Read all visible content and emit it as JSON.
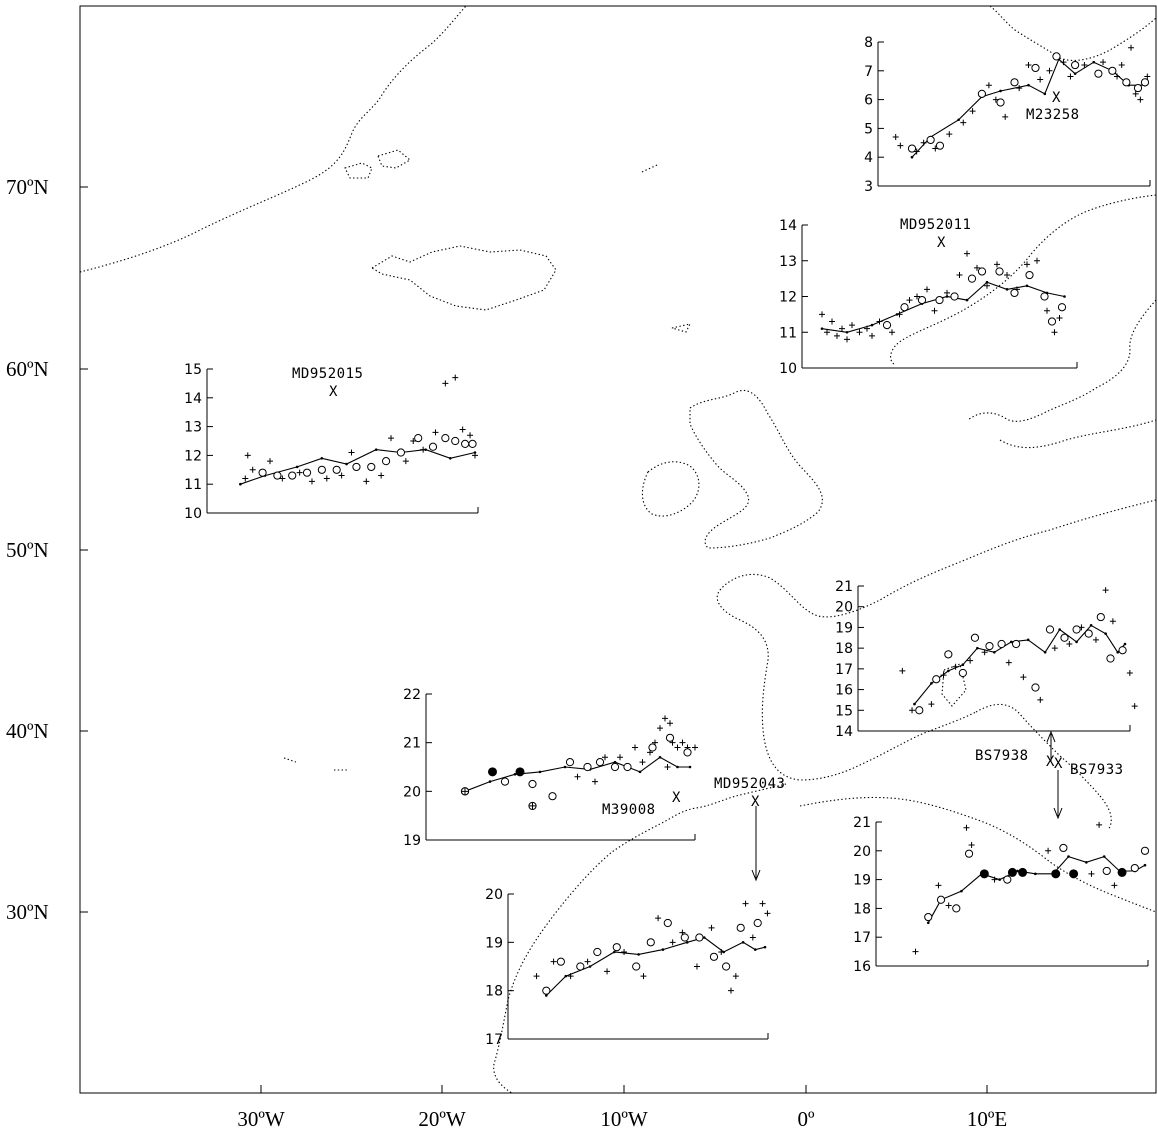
{
  "map": {
    "lat_labels": [
      "70ºN",
      "60ºN",
      "50ºN",
      "40ºN",
      "30ºN"
    ],
    "lon_labels": [
      "30ºW",
      "20ºW",
      "10ºW",
      "0º",
      "10ºE"
    ]
  },
  "chart_data": [
    {
      "type": "scatter",
      "site": "M23258",
      "ylim": [
        3,
        8
      ],
      "yticks": [
        "3",
        "4",
        "5",
        "6",
        "7",
        "8"
      ],
      "trend": [
        [
          0.0,
          4.0
        ],
        [
          0.08,
          4.7
        ],
        [
          0.2,
          5.3
        ],
        [
          0.3,
          6.1
        ],
        [
          0.38,
          6.3
        ],
        [
          0.5,
          6.5
        ],
        [
          0.57,
          6.2
        ],
        [
          0.63,
          7.4
        ],
        [
          0.7,
          6.9
        ],
        [
          0.78,
          7.3
        ],
        [
          0.86,
          7.0
        ],
        [
          0.93,
          6.5
        ],
        [
          1.0,
          6.5
        ]
      ],
      "circles": [
        [
          0.0,
          4.3
        ],
        [
          0.08,
          4.6
        ],
        [
          0.12,
          4.4
        ],
        [
          0.3,
          6.2
        ],
        [
          0.38,
          5.9
        ],
        [
          0.44,
          6.6
        ],
        [
          0.53,
          7.1
        ],
        [
          0.62,
          7.5
        ],
        [
          0.7,
          7.2
        ],
        [
          0.8,
          6.9
        ],
        [
          0.86,
          7.0
        ],
        [
          0.92,
          6.6
        ],
        [
          0.97,
          6.4
        ],
        [
          1.0,
          6.6
        ]
      ],
      "pluses": [
        [
          -0.07,
          4.7
        ],
        [
          -0.05,
          4.4
        ],
        [
          0.02,
          4.2
        ],
        [
          0.05,
          4.5
        ],
        [
          0.1,
          4.3
        ],
        [
          0.16,
          4.8
        ],
        [
          0.22,
          5.2
        ],
        [
          0.26,
          5.6
        ],
        [
          0.33,
          6.5
        ],
        [
          0.36,
          6.0
        ],
        [
          0.4,
          5.4
        ],
        [
          0.46,
          6.4
        ],
        [
          0.5,
          7.2
        ],
        [
          0.55,
          6.7
        ],
        [
          0.59,
          7.0
        ],
        [
          0.65,
          7.3
        ],
        [
          0.68,
          6.8
        ],
        [
          0.74,
          7.2
        ],
        [
          0.82,
          7.3
        ],
        [
          0.88,
          6.8
        ],
        [
          0.9,
          7.2
        ],
        [
          0.94,
          7.8
        ],
        [
          0.96,
          6.2
        ],
        [
          0.98,
          6.0
        ],
        [
          1.01,
          6.8
        ]
      ]
    },
    {
      "type": "scatter",
      "site": "MD952011",
      "ylim": [
        10,
        14
      ],
      "yticks": [
        "10",
        "11",
        "12",
        "13",
        "14"
      ],
      "trend": [
        [
          0.0,
          11.1
        ],
        [
          0.1,
          11.0
        ],
        [
          0.2,
          11.2
        ],
        [
          0.3,
          11.5
        ],
        [
          0.4,
          11.8
        ],
        [
          0.5,
          12.0
        ],
        [
          0.58,
          11.9
        ],
        [
          0.66,
          12.4
        ],
        [
          0.74,
          12.2
        ],
        [
          0.82,
          12.3
        ],
        [
          0.9,
          12.1
        ],
        [
          0.97,
          12.0
        ]
      ],
      "circles": [
        [
          0.26,
          11.2
        ],
        [
          0.33,
          11.7
        ],
        [
          0.4,
          11.9
        ],
        [
          0.47,
          11.9
        ],
        [
          0.53,
          12.0
        ],
        [
          0.6,
          12.5
        ],
        [
          0.64,
          12.7
        ],
        [
          0.71,
          12.7
        ],
        [
          0.77,
          12.1
        ],
        [
          0.83,
          12.6
        ],
        [
          0.89,
          12.0
        ],
        [
          0.92,
          11.3
        ],
        [
          0.96,
          11.7
        ]
      ],
      "pluses": [
        [
          0.0,
          11.5
        ],
        [
          0.02,
          11.0
        ],
        [
          0.04,
          11.3
        ],
        [
          0.06,
          10.9
        ],
        [
          0.08,
          11.1
        ],
        [
          0.1,
          10.8
        ],
        [
          0.12,
          11.2
        ],
        [
          0.15,
          11.0
        ],
        [
          0.18,
          11.1
        ],
        [
          0.2,
          10.9
        ],
        [
          0.23,
          11.3
        ],
        [
          0.28,
          11.0
        ],
        [
          0.31,
          11.5
        ],
        [
          0.35,
          11.9
        ],
        [
          0.38,
          12.0
        ],
        [
          0.42,
          12.2
        ],
        [
          0.45,
          11.6
        ],
        [
          0.5,
          12.1
        ],
        [
          0.55,
          12.6
        ],
        [
          0.58,
          13.2
        ],
        [
          0.62,
          12.8
        ],
        [
          0.66,
          12.3
        ],
        [
          0.7,
          12.9
        ],
        [
          0.74,
          12.6
        ],
        [
          0.78,
          12.2
        ],
        [
          0.82,
          12.9
        ],
        [
          0.86,
          13.0
        ],
        [
          0.9,
          11.6
        ],
        [
          0.93,
          11.0
        ],
        [
          0.95,
          11.4
        ]
      ]
    },
    {
      "type": "scatter",
      "site": "MD952015",
      "ylim": [
        10,
        15
      ],
      "yticks": [
        "10",
        "11",
        "12",
        "13",
        "14",
        "15"
      ],
      "trend": [
        [
          0.05,
          11.0
        ],
        [
          0.15,
          11.3
        ],
        [
          0.28,
          11.6
        ],
        [
          0.38,
          11.9
        ],
        [
          0.48,
          11.7
        ],
        [
          0.6,
          12.2
        ],
        [
          0.7,
          12.1
        ],
        [
          0.8,
          12.2
        ],
        [
          0.9,
          11.9
        ],
        [
          1.0,
          12.1
        ]
      ],
      "circles": [
        [
          0.14,
          11.4
        ],
        [
          0.2,
          11.3
        ],
        [
          0.26,
          11.3
        ],
        [
          0.32,
          11.4
        ],
        [
          0.38,
          11.5
        ],
        [
          0.44,
          11.5
        ],
        [
          0.52,
          11.6
        ],
        [
          0.58,
          11.6
        ],
        [
          0.64,
          11.8
        ],
        [
          0.7,
          12.1
        ],
        [
          0.77,
          12.6
        ],
        [
          0.83,
          12.3
        ],
        [
          0.88,
          12.6
        ],
        [
          0.92,
          12.5
        ],
        [
          0.96,
          12.4
        ],
        [
          0.99,
          12.4
        ]
      ],
      "pluses": [
        [
          0.07,
          11.2
        ],
        [
          0.08,
          12.0
        ],
        [
          0.1,
          11.5
        ],
        [
          0.17,
          11.8
        ],
        [
          0.22,
          11.2
        ],
        [
          0.29,
          11.4
        ],
        [
          0.34,
          11.1
        ],
        [
          0.4,
          11.2
        ],
        [
          0.46,
          11.3
        ],
        [
          0.5,
          12.1
        ],
        [
          0.56,
          11.1
        ],
        [
          0.62,
          11.3
        ],
        [
          0.66,
          12.6
        ],
        [
          0.72,
          11.8
        ],
        [
          0.75,
          12.5
        ],
        [
          0.79,
          12.2
        ],
        [
          0.84,
          12.8
        ],
        [
          0.88,
          14.5
        ],
        [
          0.92,
          14.7
        ],
        [
          0.95,
          12.9
        ],
        [
          0.98,
          12.7
        ],
        [
          1.0,
          12.0
        ]
      ]
    },
    {
      "type": "scatter",
      "site": "BS7938",
      "ylim": [
        14,
        21
      ],
      "yticks": [
        "14",
        "15",
        "16",
        "17",
        "18",
        "19",
        "20",
        "21"
      ],
      "trend": [
        [
          0.13,
          15.3
        ],
        [
          0.2,
          16.3
        ],
        [
          0.27,
          16.9
        ],
        [
          0.33,
          17.2
        ],
        [
          0.39,
          18.0
        ],
        [
          0.46,
          17.8
        ],
        [
          0.53,
          18.3
        ],
        [
          0.6,
          18.4
        ],
        [
          0.67,
          17.8
        ],
        [
          0.73,
          18.9
        ],
        [
          0.8,
          18.3
        ],
        [
          0.86,
          19.1
        ],
        [
          0.92,
          18.7
        ],
        [
          0.97,
          17.8
        ],
        [
          1.0,
          18.2
        ]
      ],
      "circles": [
        [
          0.15,
          15.0
        ],
        [
          0.22,
          16.5
        ],
        [
          0.27,
          17.7
        ],
        [
          0.33,
          16.8
        ],
        [
          0.38,
          18.5
        ],
        [
          0.44,
          18.1
        ],
        [
          0.49,
          18.2
        ],
        [
          0.55,
          18.2
        ],
        [
          0.63,
          16.1
        ],
        [
          0.69,
          18.9
        ],
        [
          0.75,
          18.5
        ],
        [
          0.8,
          18.9
        ],
        [
          0.85,
          18.7
        ],
        [
          0.9,
          19.5
        ],
        [
          0.94,
          17.5
        ],
        [
          0.99,
          17.9
        ]
      ],
      "pluses": [
        [
          0.08,
          16.9
        ],
        [
          0.12,
          15.0
        ],
        [
          0.2,
          15.3
        ],
        [
          0.25,
          16.7
        ],
        [
          0.3,
          17.1
        ],
        [
          0.36,
          17.4
        ],
        [
          0.42,
          17.8
        ],
        [
          0.52,
          17.3
        ],
        [
          0.58,
          16.6
        ],
        [
          0.65,
          15.5
        ],
        [
          0.71,
          18.0
        ],
        [
          0.77,
          18.2
        ],
        [
          0.82,
          19.0
        ],
        [
          0.88,
          18.4
        ],
        [
          0.92,
          20.8
        ],
        [
          0.95,
          19.3
        ],
        [
          1.02,
          16.8
        ],
        [
          1.04,
          15.2
        ]
      ]
    },
    {
      "type": "scatter",
      "site": "M39008",
      "ylim": [
        19,
        22
      ],
      "yticks": [
        "19",
        "20",
        "21",
        "22"
      ],
      "trend": [
        [
          0.1,
          20.0
        ],
        [
          0.2,
          20.2
        ],
        [
          0.3,
          20.35
        ],
        [
          0.4,
          20.4
        ],
        [
          0.5,
          20.5
        ],
        [
          0.6,
          20.45
        ],
        [
          0.7,
          20.6
        ],
        [
          0.8,
          20.4
        ],
        [
          0.88,
          20.7
        ],
        [
          0.95,
          20.5
        ],
        [
          1.0,
          20.5
        ]
      ],
      "circles": [
        [
          0.1,
          20.0
        ],
        [
          0.26,
          20.2
        ],
        [
          0.37,
          20.15
        ],
        [
          0.45,
          19.9
        ],
        [
          0.52,
          20.6
        ],
        [
          0.59,
          20.5
        ],
        [
          0.64,
          20.6
        ],
        [
          0.7,
          20.5
        ],
        [
          0.75,
          20.5
        ],
        [
          0.85,
          20.9
        ],
        [
          0.92,
          21.1
        ],
        [
          0.99,
          20.8
        ]
      ],
      "filled": [
        [
          0.21,
          20.4
        ],
        [
          0.32,
          20.4
        ]
      ],
      "plus_circles": [
        [
          0.1,
          20.0
        ],
        [
          0.37,
          19.7
        ]
      ],
      "pluses": [
        [
          0.55,
          20.3
        ],
        [
          0.62,
          20.2
        ],
        [
          0.66,
          20.7
        ],
        [
          0.72,
          20.7
        ],
        [
          0.78,
          20.9
        ],
        [
          0.81,
          20.6
        ],
        [
          0.84,
          20.8
        ],
        [
          0.86,
          21.0
        ],
        [
          0.88,
          21.3
        ],
        [
          0.9,
          21.5
        ],
        [
          0.92,
          21.4
        ],
        [
          0.93,
          21.0
        ],
        [
          0.95,
          20.9
        ],
        [
          0.97,
          21.0
        ],
        [
          0.99,
          20.9
        ],
        [
          1.02,
          20.9
        ],
        [
          0.91,
          20.5
        ]
      ]
    },
    {
      "type": "scatter",
      "site": "MD952043",
      "ylim": [
        17,
        20
      ],
      "yticks": [
        "17",
        "18",
        "19",
        "20"
      ],
      "trend": [
        [
          0.1,
          17.9
        ],
        [
          0.18,
          18.3
        ],
        [
          0.28,
          18.5
        ],
        [
          0.38,
          18.8
        ],
        [
          0.48,
          18.75
        ],
        [
          0.58,
          18.85
        ],
        [
          0.68,
          19.0
        ],
        [
          0.75,
          19.1
        ],
        [
          0.83,
          18.8
        ],
        [
          0.91,
          19.0
        ],
        [
          0.96,
          18.85
        ],
        [
          1.0,
          18.9
        ]
      ],
      "circles": [
        [
          0.1,
          18.0
        ],
        [
          0.16,
          18.6
        ],
        [
          0.24,
          18.5
        ],
        [
          0.31,
          18.8
        ],
        [
          0.39,
          18.9
        ],
        [
          0.47,
          18.5
        ],
        [
          0.53,
          19.0
        ],
        [
          0.6,
          19.4
        ],
        [
          0.67,
          19.1
        ],
        [
          0.73,
          19.1
        ],
        [
          0.79,
          18.7
        ],
        [
          0.84,
          18.5
        ],
        [
          0.9,
          19.3
        ],
        [
          0.97,
          19.4
        ]
      ],
      "pluses": [
        [
          0.06,
          18.3
        ],
        [
          0.13,
          18.6
        ],
        [
          0.2,
          18.3
        ],
        [
          0.27,
          18.6
        ],
        [
          0.35,
          18.4
        ],
        [
          0.42,
          18.8
        ],
        [
          0.5,
          18.3
        ],
        [
          0.56,
          19.5
        ],
        [
          0.62,
          19.0
        ],
        [
          0.66,
          19.2
        ],
        [
          0.72,
          18.5
        ],
        [
          0.78,
          19.3
        ],
        [
          0.82,
          18.8
        ],
        [
          0.86,
          18.0
        ],
        [
          0.88,
          18.3
        ],
        [
          0.92,
          19.8
        ],
        [
          0.95,
          19.1
        ],
        [
          0.99,
          19.8
        ],
        [
          1.01,
          19.6
        ]
      ]
    },
    {
      "type": "scatter",
      "site": "BS7933",
      "ylim": [
        16,
        21
      ],
      "yticks": [
        "16",
        "17",
        "18",
        "19",
        "20",
        "21"
      ],
      "trend": [
        [
          0.15,
          17.5
        ],
        [
          0.2,
          18.3
        ],
        [
          0.28,
          18.6
        ],
        [
          0.36,
          19.2
        ],
        [
          0.43,
          19.0
        ],
        [
          0.5,
          19.3
        ],
        [
          0.57,
          19.2
        ],
        [
          0.64,
          19.2
        ],
        [
          0.7,
          19.8
        ],
        [
          0.77,
          19.6
        ],
        [
          0.84,
          19.8
        ],
        [
          0.9,
          19.3
        ],
        [
          0.96,
          19.3
        ],
        [
          1.0,
          19.5
        ]
      ],
      "circles": [
        [
          0.15,
          17.7
        ],
        [
          0.2,
          18.3
        ],
        [
          0.26,
          18.0
        ],
        [
          0.31,
          19.9
        ],
        [
          0.46,
          19.0
        ],
        [
          0.68,
          20.1
        ],
        [
          0.85,
          19.3
        ],
        [
          0.96,
          19.4
        ],
        [
          1.0,
          20.0
        ]
      ],
      "filled": [
        [
          0.37,
          19.2
        ],
        [
          0.48,
          19.25
        ],
        [
          0.52,
          19.25
        ],
        [
          0.65,
          19.2
        ],
        [
          0.72,
          19.2
        ],
        [
          0.91,
          19.25
        ]
      ],
      "pluses": [
        [
          0.1,
          16.5
        ],
        [
          0.19,
          18.8
        ],
        [
          0.23,
          18.1
        ],
        [
          0.3,
          20.8
        ],
        [
          0.32,
          20.2
        ],
        [
          0.41,
          19.0
        ],
        [
          0.62,
          20.0
        ],
        [
          0.79,
          19.2
        ],
        [
          0.82,
          20.9
        ],
        [
          0.88,
          18.8
        ]
      ]
    }
  ]
}
